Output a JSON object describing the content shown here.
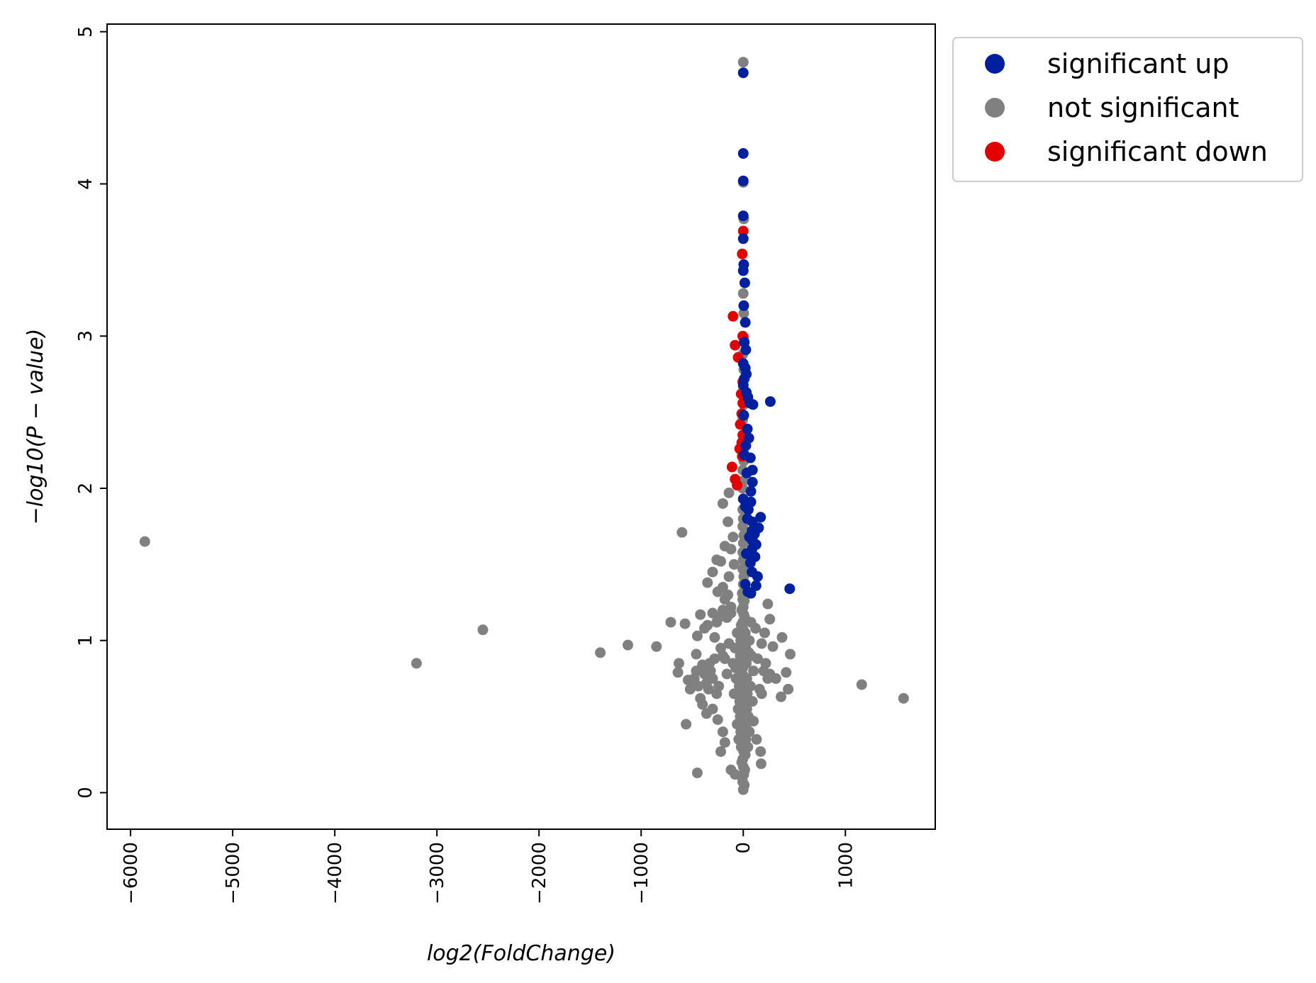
{
  "chart_data": {
    "type": "scatter",
    "title": "",
    "xlabel": "log2(FoldChange)",
    "ylabel": "−log10(P − value)",
    "xlim": [
      -6230,
      1880
    ],
    "ylim": [
      -0.24,
      5.05
    ],
    "xticks": [
      -6000,
      -5000,
      -4000,
      -3000,
      -2000,
      -1000,
      0,
      1000
    ],
    "xtick_labels": [
      "−6000",
      "−5000",
      "−4000",
      "−3000",
      "−2000",
      "−1000",
      "0",
      "1000"
    ],
    "yticks": [
      0,
      1,
      2,
      3,
      4,
      5
    ],
    "ytick_labels": [
      "0",
      "1",
      "2",
      "3",
      "4",
      "5"
    ],
    "grid": false,
    "legend_position": "outside-top-right",
    "series": [
      {
        "name": "significant up",
        "color": "#00209F",
        "points": [
          [
            0,
            4.73
          ],
          [
            0,
            4.2
          ],
          [
            0,
            4.02
          ],
          [
            0,
            3.79
          ],
          [
            0,
            3.64
          ],
          [
            5,
            3.47
          ],
          [
            0,
            3.43
          ],
          [
            15,
            3.35
          ],
          [
            5,
            3.2
          ],
          [
            20,
            3.09
          ],
          [
            10,
            2.96
          ],
          [
            25,
            2.91
          ],
          [
            0,
            2.82
          ],
          [
            20,
            2.79
          ],
          [
            30,
            2.75
          ],
          [
            10,
            2.72
          ],
          [
            0,
            2.68
          ],
          [
            30,
            2.63
          ],
          [
            45,
            2.6
          ],
          [
            65,
            2.56
          ],
          [
            95,
            2.55
          ],
          [
            265,
            2.57
          ],
          [
            5,
            2.48
          ],
          [
            40,
            2.39
          ],
          [
            55,
            2.33
          ],
          [
            25,
            2.28
          ],
          [
            10,
            2.22
          ],
          [
            70,
            2.2
          ],
          [
            90,
            2.12
          ],
          [
            35,
            2.1
          ],
          [
            90,
            2.04
          ],
          [
            75,
            1.98
          ],
          [
            0,
            1.93
          ],
          [
            75,
            1.91
          ],
          [
            20,
            1.88
          ],
          [
            50,
            1.86
          ],
          [
            170,
            1.81
          ],
          [
            40,
            1.8
          ],
          [
            90,
            1.78
          ],
          [
            150,
            1.74
          ],
          [
            85,
            1.72
          ],
          [
            110,
            1.7
          ],
          [
            60,
            1.68
          ],
          [
            95,
            1.65
          ],
          [
            125,
            1.63
          ],
          [
            85,
            1.6
          ],
          [
            30,
            1.57
          ],
          [
            115,
            1.55
          ],
          [
            70,
            1.51
          ],
          [
            140,
            1.42
          ],
          [
            85,
            1.45
          ],
          [
            125,
            1.36
          ],
          [
            20,
            1.37
          ],
          [
            455,
            1.34
          ],
          [
            75,
            1.31
          ],
          [
            45,
            1.32
          ]
        ]
      },
      {
        "name": "not significant",
        "color": "#808080",
        "points": [
          [
            0,
            4.8
          ],
          [
            0,
            4.01
          ],
          [
            5,
            3.77
          ],
          [
            0,
            3.28
          ],
          [
            5,
            3.15
          ],
          [
            5,
            2.99
          ],
          [
            -5,
            2.88
          ],
          [
            5,
            2.78
          ],
          [
            0,
            2.67
          ],
          [
            5,
            2.55
          ],
          [
            -5,
            2.45
          ],
          [
            5,
            2.35
          ],
          [
            0,
            2.25
          ],
          [
            5,
            2.18
          ],
          [
            -5,
            2.12
          ],
          [
            0,
            2.05
          ],
          [
            -5,
            2.0
          ],
          [
            0,
            1.93
          ],
          [
            -5,
            1.86
          ],
          [
            0,
            1.8
          ],
          [
            -5,
            1.75
          ],
          [
            5,
            1.69
          ],
          [
            0,
            1.64
          ],
          [
            -5,
            1.58
          ],
          [
            0,
            1.53
          ],
          [
            -5,
            1.47
          ],
          [
            5,
            1.42
          ],
          [
            0,
            1.37
          ],
          [
            -10,
            1.31
          ],
          [
            10,
            1.26
          ],
          [
            -15,
            1.2
          ],
          [
            15,
            1.15
          ],
          [
            -20,
            1.1
          ],
          [
            20,
            1.05
          ],
          [
            -25,
            1.0
          ],
          [
            25,
            0.95
          ],
          [
            -30,
            0.9
          ],
          [
            30,
            0.85
          ],
          [
            -35,
            0.8
          ],
          [
            35,
            0.75
          ],
          [
            -40,
            0.7
          ],
          [
            40,
            0.65
          ],
          [
            -35,
            0.6
          ],
          [
            35,
            0.55
          ],
          [
            -30,
            0.5
          ],
          [
            30,
            0.45
          ],
          [
            -25,
            0.4
          ],
          [
            25,
            0.35
          ],
          [
            -20,
            0.3
          ],
          [
            20,
            0.25
          ],
          [
            -15,
            0.2
          ],
          [
            15,
            0.15
          ],
          [
            -10,
            0.1
          ],
          [
            10,
            0.05
          ],
          [
            0,
            0.02
          ],
          [
            -5,
            0.07
          ],
          [
            5,
            0.12
          ],
          [
            0,
            0.17
          ],
          [
            -5,
            0.22
          ],
          [
            5,
            0.27
          ],
          [
            0,
            0.32
          ],
          [
            -5,
            0.37
          ],
          [
            5,
            0.42
          ],
          [
            0,
            0.47
          ],
          [
            -5,
            0.52
          ],
          [
            5,
            0.57
          ],
          [
            0,
            0.62
          ],
          [
            -5,
            0.67
          ],
          [
            5,
            0.72
          ],
          [
            0,
            0.77
          ],
          [
            -5,
            0.82
          ],
          [
            5,
            0.87
          ],
          [
            0,
            0.92
          ],
          [
            -5,
            0.97
          ],
          [
            5,
            1.02
          ],
          [
            0,
            1.07
          ],
          [
            -5,
            1.12
          ],
          [
            5,
            1.17
          ],
          [
            0,
            1.22
          ],
          [
            -5,
            1.27
          ],
          [
            -60,
            1.05
          ],
          [
            60,
            1.0
          ],
          [
            -80,
            0.95
          ],
          [
            80,
            0.9
          ],
          [
            -100,
            0.85
          ],
          [
            100,
            0.8
          ],
          [
            -70,
            0.75
          ],
          [
            70,
            0.7
          ],
          [
            -90,
            0.65
          ],
          [
            90,
            0.6
          ],
          [
            -50,
            0.55
          ],
          [
            50,
            0.5
          ],
          [
            -60,
            0.45
          ],
          [
            60,
            0.4
          ],
          [
            -45,
            0.35
          ],
          [
            45,
            0.3
          ],
          [
            -55,
            0.85
          ],
          [
            55,
            0.92
          ],
          [
            -75,
            0.82
          ],
          [
            75,
            1.12
          ],
          [
            -120,
            1.18
          ],
          [
            120,
            1.08
          ],
          [
            -140,
            0.98
          ],
          [
            140,
            0.88
          ],
          [
            -160,
            0.78
          ],
          [
            160,
            0.68
          ],
          [
            -180,
            0.88
          ],
          [
            180,
            0.98
          ],
          [
            -200,
            0.9
          ],
          [
            200,
            0.8
          ],
          [
            -220,
            0.95
          ],
          [
            220,
            0.85
          ],
          [
            -240,
            0.7
          ],
          [
            240,
            0.75
          ],
          [
            -260,
            0.65
          ],
          [
            260,
            0.78
          ],
          [
            -280,
            0.88
          ],
          [
            -300,
            0.75
          ],
          [
            -320,
            0.8
          ],
          [
            -340,
            0.68
          ],
          [
            -360,
            0.72
          ],
          [
            -380,
            0.78
          ],
          [
            -400,
            0.84
          ],
          [
            -420,
            0.62
          ],
          [
            -440,
            0.7
          ],
          [
            -460,
            0.8
          ],
          [
            -480,
            0.75
          ],
          [
            -500,
            0.7
          ],
          [
            -520,
            0.68
          ],
          [
            -540,
            0.74
          ],
          [
            -150,
            1.3
          ],
          [
            -200,
            1.35
          ],
          [
            -250,
            1.32
          ],
          [
            -300,
            1.45
          ],
          [
            -350,
            1.38
          ],
          [
            -120,
            1.6
          ],
          [
            -180,
            1.62
          ],
          [
            -100,
            1.68
          ],
          [
            -150,
            1.78
          ],
          [
            -200,
            1.9
          ],
          [
            -140,
            1.97
          ],
          [
            -220,
            1.52
          ],
          [
            -260,
            1.53
          ],
          [
            -120,
            1.22
          ],
          [
            -160,
            1.15
          ],
          [
            -200,
            1.2
          ],
          [
            -260,
            1.12
          ],
          [
            -300,
            1.18
          ],
          [
            -350,
            1.1
          ],
          [
            -380,
            1.08
          ],
          [
            -420,
            1.17
          ],
          [
            -450,
            1.03
          ],
          [
            -460,
            0.91
          ],
          [
            -600,
            1.71
          ],
          [
            -570,
            1.11
          ],
          [
            -710,
            1.12
          ],
          [
            -630,
            0.85
          ],
          [
            -640,
            0.79
          ],
          [
            -560,
            0.45
          ],
          [
            -450,
            0.13
          ],
          [
            -850,
            0.96
          ],
          [
            -1130,
            0.97
          ],
          [
            -1400,
            0.92
          ],
          [
            -2550,
            1.07
          ],
          [
            -3200,
            0.85
          ],
          [
            -5860,
            1.65
          ],
          [
            1160,
            0.71
          ],
          [
            1570,
            0.62
          ],
          [
            380,
            1.02
          ],
          [
            460,
            0.91
          ],
          [
            420,
            0.79
          ],
          [
            440,
            0.68
          ],
          [
            370,
            0.63
          ],
          [
            320,
            0.75
          ],
          [
            290,
            0.96
          ],
          [
            260,
            1.14
          ],
          [
            240,
            1.24
          ],
          [
            210,
            1.05
          ],
          [
            180,
            0.65
          ],
          [
            170,
            0.27
          ],
          [
            175,
            0.19
          ],
          [
            130,
            0.35
          ],
          [
            100,
            0.47
          ],
          [
            -80,
            0.12
          ],
          [
            -120,
            0.15
          ],
          [
            -180,
            0.33
          ],
          [
            -220,
            0.27
          ],
          [
            -200,
            0.4
          ],
          [
            -360,
            0.52
          ],
          [
            -400,
            0.58
          ],
          [
            -300,
            0.55
          ],
          [
            -250,
            0.48
          ],
          [
            -330,
            0.85
          ],
          [
            -280,
            1.02
          ],
          [
            -240,
            1.15
          ],
          [
            -180,
            1.27
          ],
          [
            -140,
            1.42
          ],
          [
            -90,
            1.5
          ]
        ]
      },
      {
        "name": "significant down",
        "color": "#E30000",
        "points": [
          [
            0,
            3.69
          ],
          [
            -10,
            3.54
          ],
          [
            -100,
            3.13
          ],
          [
            -5,
            3.0
          ],
          [
            -80,
            2.94
          ],
          [
            -50,
            2.86
          ],
          [
            -5,
            2.7
          ],
          [
            -20,
            2.62
          ],
          [
            -5,
            2.56
          ],
          [
            -15,
            2.49
          ],
          [
            -30,
            2.42
          ],
          [
            -5,
            2.35
          ],
          [
            -15,
            2.3
          ],
          [
            -35,
            2.26
          ],
          [
            -10,
            2.21
          ],
          [
            -110,
            2.14
          ],
          [
            -80,
            2.06
          ],
          [
            -60,
            2.02
          ]
        ]
      }
    ]
  }
}
